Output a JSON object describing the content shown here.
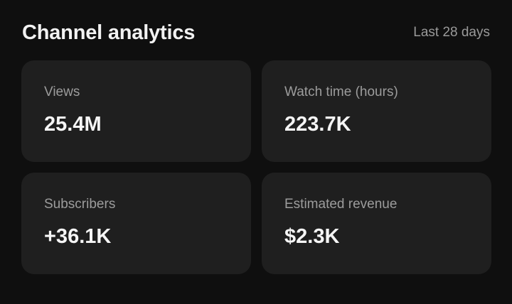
{
  "header": {
    "title": "Channel analytics",
    "range": "Last 28 days"
  },
  "metrics": [
    {
      "label": "Views",
      "value": "25.4M"
    },
    {
      "label": "Watch time (hours)",
      "value": "223.7K"
    },
    {
      "label": "Subscribers",
      "value": "+36.1K"
    },
    {
      "label": "Estimated revenue",
      "value": "$2.3K"
    }
  ],
  "colors": {
    "background": "#0f0f0f",
    "card": "#1f1f1f",
    "label": "#9c9c9c",
    "value": "#f5f5f5"
  }
}
